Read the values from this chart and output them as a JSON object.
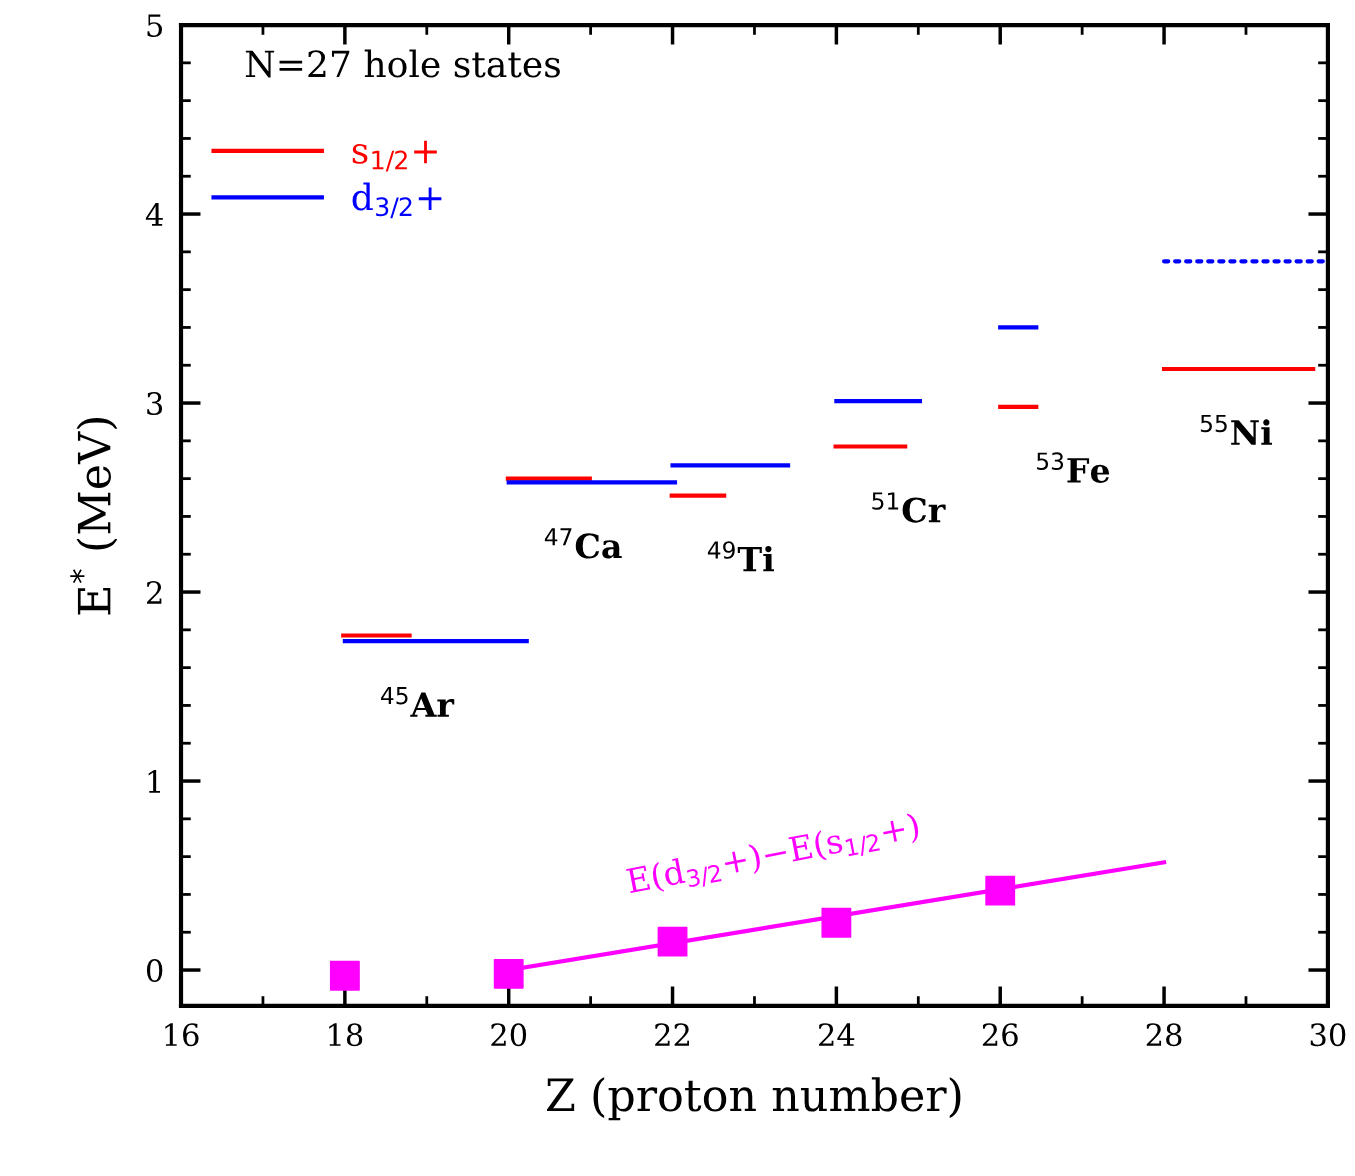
{
  "chart_data": {
    "type": "line",
    "xlabel": "Z (proton number)",
    "ylabel": "E$^{*}$ (MeV)",
    "xlim": [
      16,
      30
    ],
    "ylim": [
      -0.19,
      5
    ],
    "xticks": [
      16,
      {
        "value": 17,
        "label": null
      },
      18,
      {
        "value": 19,
        "label": null
      },
      20,
      {
        "value": 21,
        "label": null
      },
      22,
      {
        "value": 23,
        "label": null
      },
      24,
      {
        "value": 25,
        "label": null
      },
      26,
      {
        "value": 27,
        "label": null
      },
      28,
      {
        "value": 29,
        "label": null
      },
      30
    ],
    "yticks": [
      0,
      {
        "value": 0.2,
        "label": null
      },
      {
        "value": 0.4,
        "label": null
      },
      {
        "value": 0.6,
        "label": null
      },
      {
        "value": 0.8,
        "label": null
      },
      1,
      {
        "value": 1.2,
        "label": null
      },
      {
        "value": 1.4,
        "label": null
      },
      {
        "value": 1.6,
        "label": null
      },
      {
        "value": 1.8,
        "label": null
      },
      2,
      {
        "value": 2.2,
        "label": null
      },
      {
        "value": 2.4,
        "label": null
      },
      {
        "value": 2.6,
        "label": null
      },
      {
        "value": 2.8,
        "label": null
      },
      3,
      {
        "value": 3.2,
        "label": null
      },
      {
        "value": 3.4,
        "label": null
      },
      {
        "value": 3.6,
        "label": null
      },
      {
        "value": 3.8,
        "label": null
      },
      4,
      {
        "value": 4.2,
        "label": null
      },
      {
        "value": 4.4,
        "label": null
      },
      {
        "value": 4.6,
        "label": null
      },
      {
        "value": 4.8,
        "label": null
      },
      5
    ],
    "grid": false,
    "legend": "top left",
    "annotations": [
      "N=27 hole states",
      {
        "text": "$^{45}$Ar",
        "x": 18.0,
        "y": 1.74
      },
      {
        "text": "$^{47}$Ca",
        "x": 20.0,
        "y": 2.58
      },
      {
        "text": "$^{49}$Ti",
        "x": 21.99,
        "y": 2.51
      },
      {
        "text": "$^{51}$Cr",
        "x": 23.99,
        "y": 2.77
      },
      {
        "text": "$^{53}$Fe",
        "x": 26.0,
        "y": 2.98
      },
      {
        "text": "$^{55}$Ni",
        "x": 28.0,
        "y": 3.18
      }
    ],
    "series": [
      {
        "name": "s$_{1/2}$+",
        "color": "#ff0000",
        "x": [
          17.98,
          18.79
        ],
        "values": [
          1.77,
          1.77
        ]
      },
      {
        "name": "d$_{3/2}$+",
        "color": "#0000ff",
        "x": [
          18.0,
          20.22
        ],
        "values": [
          1.74,
          1.74
        ]
      },
      {
        "color": "#ff0000",
        "x": [
          19.99,
          20.99
        ],
        "values": [
          2.6,
          2.6
        ]
      },
      {
        "color": "#0000ff",
        "x": [
          20.0,
          22.03
        ],
        "values": [
          2.58,
          2.58
        ]
      },
      {
        "color": "#ff0000",
        "x": [
          21.99,
          22.63
        ],
        "values": [
          2.51,
          2.51
        ]
      },
      {
        "color": "#0000ff",
        "x": [
          22.0,
          23.41
        ],
        "values": [
          2.67,
          2.67
        ]
      },
      {
        "color": "#ff0000",
        "x": [
          23.99,
          24.84
        ],
        "values": [
          2.77,
          2.77
        ]
      },
      {
        "color": "#0000ff",
        "x": [
          24.0,
          25.02
        ],
        "values": [
          3.01,
          3.01
        ]
      },
      {
        "color": "#ff0000",
        "x": [
          26.0,
          26.44
        ],
        "values": [
          2.98,
          2.98
        ]
      },
      {
        "color": "#0000ff",
        "x": [
          26.0,
          26.44
        ],
        "values": [
          3.4,
          3.4
        ]
      },
      {
        "color": "#ff0000",
        "x": [
          28.0,
          29.82
        ],
        "values": [
          3.18,
          3.18
        ]
      },
      {
        "color": "#0000ff",
        "x": [
          28.0,
          30.0
        ],
        "values": [
          3.75,
          3.75
        ],
        "line_style": "dotted"
      },
      {
        "type": "scatter",
        "name": "E(d$_{3/2}$+)−E(s$_{1/2}$+)",
        "color": "#ff00ff",
        "marker": "square",
        "x": [
          18,
          20,
          22,
          24,
          26
        ],
        "values": [
          -0.03,
          -0.02,
          0.15,
          0.25,
          0.42
        ]
      },
      {
        "color": "#ff00ff",
        "x": [
          20,
          28
        ],
        "values": [
          0.0,
          0.57
        ]
      }
    ]
  }
}
